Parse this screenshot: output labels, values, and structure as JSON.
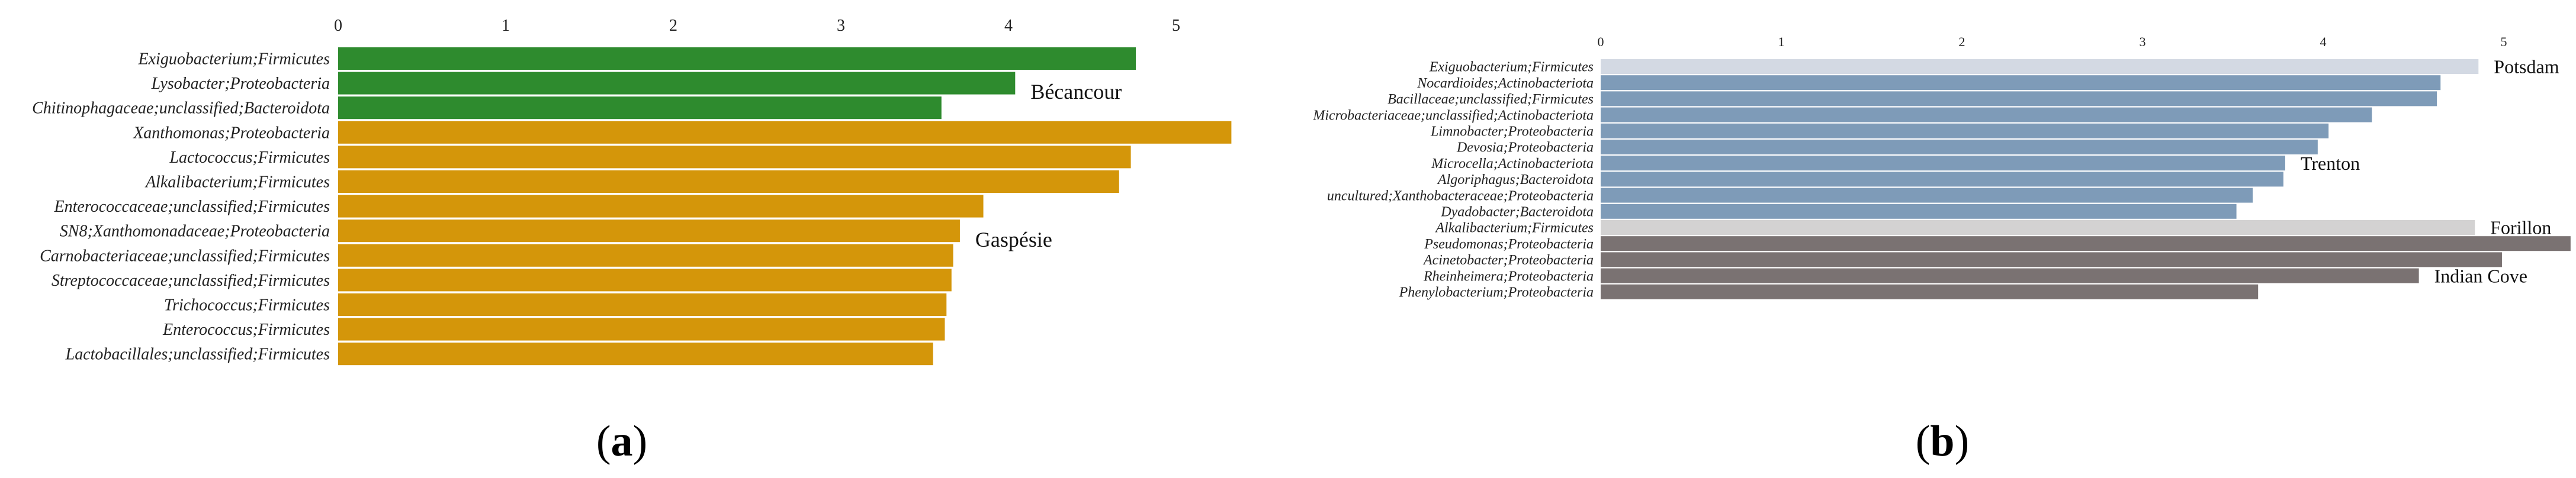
{
  "panels": [
    {
      "letter": "a"
    },
    {
      "letter": "b"
    }
  ],
  "chart_data": [
    {
      "type": "bar",
      "orientation": "horizontal",
      "xlim": [
        0,
        5.3
      ],
      "xticks": [
        "0",
        "1",
        "2",
        "3",
        "4",
        "5"
      ],
      "categories": [
        "Exiguobacterium;Firmicutes",
        "Lysobacter;Proteobacteria",
        "Chitinophagaceae;unclassified;Bacteroidota",
        "Xanthomonas;Proteobacteria",
        "Lactococcus;Firmicutes",
        "Alkalibacterium;Firmicutes",
        "Enterococcaceae;unclassified;Firmicutes",
        "SN8;Xanthomonadaceae;Proteobacteria",
        "Carnobacteriaceae;unclassified;Firmicutes",
        "Streptococcaceae;unclassified;Firmicutes",
        "Trichococcus;Firmicutes",
        "Enterococcus;Firmicutes",
        "Lactobacillales;unclassified;Firmicutes"
      ],
      "values": [
        4.76,
        4.04,
        3.6,
        5.33,
        4.73,
        4.66,
        3.85,
        3.71,
        3.67,
        3.66,
        3.63,
        3.62,
        3.55
      ],
      "groups": [
        {
          "label": "Bécancour",
          "start": 0,
          "end": 2,
          "color": "#2e8b2e"
        },
        {
          "label": "Gaspésie",
          "start": 3,
          "end": 12,
          "color": "#d4960a"
        }
      ]
    },
    {
      "type": "bar",
      "orientation": "horizontal",
      "xlim": [
        0,
        5.3
      ],
      "xticks": [
        "0",
        "1",
        "2",
        "3",
        "4",
        "5"
      ],
      "categories": [
        "Exiguobacterium;Firmicutes",
        "Nocardioides;Actinobacteriota",
        "Bacillaceae;unclassified;Firmicutes",
        "Microbacteriaceae;unclassified;Actinobacteriota",
        "Limnobacter;Proteobacteria",
        "Devosia;Proteobacteria",
        "Microcella;Actinobacteriota",
        "Algoriphagus;Bacteroidota",
        "uncultured;Xanthobacteraceae;Proteobacteria",
        "Dyadobacter;Bacteroidota",
        "Alkalibacterium;Firmicutes",
        "Pseudomonas;Proteobacteria",
        "Acinetobacter;Proteobacteria",
        "Rheinheimera;Proteobacteria",
        "Phenylobacterium;Proteobacteria"
      ],
      "values": [
        4.86,
        4.65,
        4.63,
        4.27,
        4.03,
        3.97,
        3.79,
        3.78,
        3.61,
        3.52,
        4.84,
        5.37,
        4.99,
        4.53,
        3.64
      ],
      "groups": [
        {
          "label": "Potsdam",
          "start": 0,
          "end": 0,
          "color": "#d3d9e3"
        },
        {
          "label": "Trenton",
          "start": 1,
          "end": 9,
          "color": "#7e9bb8"
        },
        {
          "label": "Forillon",
          "start": 10,
          "end": 10,
          "color": "#d3d2d2"
        },
        {
          "label": "Indian Cove",
          "start": 11,
          "end": 14,
          "color": "#7a7272"
        }
      ]
    }
  ]
}
